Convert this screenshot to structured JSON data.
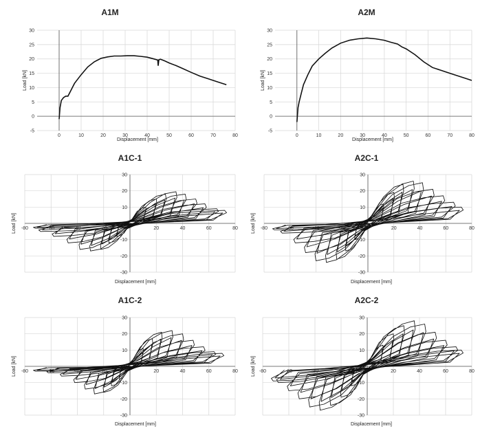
{
  "chart_data": [
    {
      "type": "line",
      "title": "A1M",
      "xlabel": "Displacement [mm]",
      "ylabel": "Load [kN]",
      "xlim": [
        -10,
        80
      ],
      "ylim": [
        -5,
        30
      ],
      "xticks": [
        0,
        10,
        20,
        30,
        40,
        50,
        60,
        70,
        80
      ],
      "yticks": [
        -5,
        0,
        5,
        10,
        15,
        20,
        25,
        30
      ],
      "grid": true,
      "series": [
        {
          "x": [
            0,
            0.4,
            1,
            2,
            3,
            4,
            5,
            7,
            10,
            13,
            16,
            19,
            22,
            25,
            28,
            31,
            34,
            37,
            40,
            43,
            44.8,
            45,
            45.3,
            46,
            48,
            50,
            53,
            56,
            60,
            64,
            68,
            72,
            76
          ],
          "y": [
            -1,
            3,
            5.5,
            6.5,
            7,
            7,
            8.5,
            11.5,
            14.5,
            17.2,
            19,
            20.2,
            20.7,
            21,
            21,
            21.1,
            21.1,
            20.9,
            20.6,
            20,
            19.6,
            17.6,
            19.7,
            19.9,
            19.3,
            18.6,
            17.7,
            16.7,
            15.3,
            14,
            13,
            12,
            11
          ]
        }
      ]
    },
    {
      "type": "line",
      "title": "A2M",
      "xlabel": "Displacement [mm]",
      "ylabel": "Load [kN]",
      "xlim": [
        -10,
        80
      ],
      "ylim": [
        -5,
        30
      ],
      "xticks": [
        0,
        10,
        20,
        30,
        40,
        50,
        60,
        70,
        80
      ],
      "yticks": [
        -5,
        0,
        5,
        10,
        15,
        20,
        25,
        30
      ],
      "grid": true,
      "series": [
        {
          "x": [
            0,
            0.5,
            1,
            2,
            3,
            5,
            7,
            10,
            13,
            16,
            20,
            24,
            28,
            32,
            36,
            40,
            43,
            46,
            48,
            50,
            54,
            58,
            62,
            66,
            70,
            74,
            78,
            80
          ],
          "y": [
            -2,
            3,
            5,
            8,
            11,
            14.5,
            17.5,
            20,
            22,
            23.8,
            25.5,
            26.5,
            27,
            27.3,
            27,
            26.5,
            25.8,
            25.2,
            24.2,
            23.5,
            21.5,
            19,
            17,
            16,
            15,
            14,
            13,
            12.5
          ]
        }
      ]
    },
    {
      "type": "line",
      "title": "A1C-1",
      "xlabel": "Displacement [mm]",
      "ylabel": "Load [kN]",
      "xlim": [
        -80,
        80
      ],
      "ylim": [
        -30,
        30
      ],
      "xticks": [
        -80,
        -60,
        -40,
        -20,
        0,
        20,
        40,
        60,
        80
      ],
      "yticks": [
        -30,
        -20,
        -10,
        0,
        10,
        20,
        30
      ],
      "grid": true,
      "cycles": [
        {
          "dmax": 12,
          "dmin": -10,
          "fpos": 10,
          "fneg": -8
        },
        {
          "dmax": 20,
          "dmin": -16,
          "fpos": 15,
          "fneg": -12
        },
        {
          "dmax": 27,
          "dmin": -22,
          "fpos": 18,
          "fneg": -16
        },
        {
          "dmax": 35,
          "dmin": -30,
          "fpos": 19.5,
          "fneg": -17
        },
        {
          "dmax": 42,
          "dmin": -38,
          "fpos": 18,
          "fneg": -16
        },
        {
          "dmax": 50,
          "dmin": -47,
          "fpos": 15,
          "fneg": -12
        },
        {
          "dmax": 57,
          "dmin": -58,
          "fpos": 12,
          "fneg": -8
        },
        {
          "dmax": 66,
          "dmin": -68,
          "fpos": 9,
          "fneg": -5
        },
        {
          "dmax": 72,
          "dmin": -72,
          "fpos": 8,
          "fneg": -3
        }
      ]
    },
    {
      "type": "line",
      "title": "A2C-1",
      "xlabel": "Displacement [mm]",
      "ylabel": "Load [kN]",
      "xlim": [
        -80,
        80
      ],
      "ylim": [
        -30,
        30
      ],
      "xticks": [
        -80,
        -60,
        -40,
        -20,
        0,
        20,
        40,
        60,
        80
      ],
      "yticks": [
        -30,
        -20,
        -10,
        0,
        10,
        20,
        30
      ],
      "grid": true,
      "cycles": [
        {
          "dmax": 12,
          "dmin": -10,
          "fpos": 12,
          "fneg": -10
        },
        {
          "dmax": 20,
          "dmin": -17,
          "fpos": 19,
          "fneg": -17
        },
        {
          "dmax": 27,
          "dmin": -24,
          "fpos": 24,
          "fneg": -22
        },
        {
          "dmax": 35,
          "dmin": -32,
          "fpos": 26,
          "fneg": -24
        },
        {
          "dmax": 42,
          "dmin": -40,
          "fpos": 25,
          "fneg": -23
        },
        {
          "dmax": 50,
          "dmin": -48,
          "fpos": 21,
          "fneg": -18
        },
        {
          "dmax": 58,
          "dmin": -56,
          "fpos": 17,
          "fneg": -12
        },
        {
          "dmax": 66,
          "dmin": -66,
          "fpos": 13,
          "fneg": -6
        },
        {
          "dmax": 72,
          "dmin": -72,
          "fpos": 10,
          "fneg": -4
        }
      ]
    },
    {
      "type": "line",
      "title": "A1C-2",
      "xlabel": "Displacement [mm]",
      "ylabel": "Load [kN]",
      "xlim": [
        -80,
        80
      ],
      "ylim": [
        -30,
        30
      ],
      "xticks": [
        -80,
        -60,
        -40,
        -20,
        0,
        20,
        40,
        60,
        80
      ],
      "yticks": [
        -30,
        -20,
        -10,
        0,
        10,
        20,
        30
      ],
      "grid": true,
      "cycles": [
        {
          "dmax": 10,
          "dmin": -8,
          "fpos": 11,
          "fneg": -8
        },
        {
          "dmax": 17,
          "dmin": -14,
          "fpos": 17,
          "fneg": -12
        },
        {
          "dmax": 24,
          "dmin": -20,
          "fpos": 21,
          "fneg": -16
        },
        {
          "dmax": 32,
          "dmin": -27,
          "fpos": 22,
          "fneg": -17
        },
        {
          "dmax": 40,
          "dmin": -34,
          "fpos": 20,
          "fneg": -14
        },
        {
          "dmax": 48,
          "dmin": -42,
          "fpos": 16,
          "fneg": -10
        },
        {
          "dmax": 56,
          "dmin": -52,
          "fpos": 12,
          "fneg": -6
        },
        {
          "dmax": 64,
          "dmin": -62,
          "fpos": 9,
          "fneg": -4
        },
        {
          "dmax": 70,
          "dmin": -72,
          "fpos": 8,
          "fneg": -3
        }
      ]
    },
    {
      "type": "line",
      "title": "A2C-2",
      "xlabel": "Displacement [mm]",
      "ylabel": "Load [kN]",
      "xlim": [
        -80,
        80
      ],
      "ylim": [
        -30,
        30
      ],
      "xticks": [
        -80,
        -60,
        -40,
        -20,
        0,
        20,
        40,
        60,
        80
      ],
      "yticks": [
        -30,
        -20,
        -10,
        0,
        10,
        20,
        30
      ],
      "grid": true,
      "cycles": [
        {
          "dmax": 12,
          "dmin": -12,
          "fpos": 13,
          "fneg": -12
        },
        {
          "dmax": 20,
          "dmin": -20,
          "fpos": 20,
          "fneg": -19
        },
        {
          "dmax": 28,
          "dmin": -28,
          "fpos": 25,
          "fneg": -24
        },
        {
          "dmax": 36,
          "dmin": -36,
          "fpos": 28,
          "fneg": -27
        },
        {
          "dmax": 44,
          "dmin": -44,
          "fpos": 26,
          "fneg": -25
        },
        {
          "dmax": 52,
          "dmin": -52,
          "fpos": 21,
          "fneg": -20
        },
        {
          "dmax": 60,
          "dmin": -60,
          "fpos": 16,
          "fneg": -15
        },
        {
          "dmax": 68,
          "dmin": -68,
          "fpos": 12,
          "fneg": -10
        },
        {
          "dmax": 72,
          "dmin": -72,
          "fpos": 10,
          "fneg": -9
        }
      ]
    }
  ]
}
